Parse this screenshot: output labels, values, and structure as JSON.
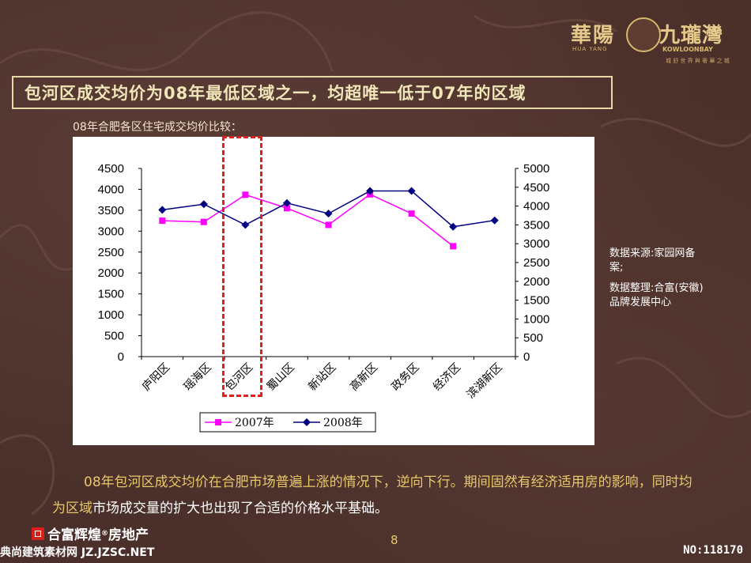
{
  "brand": {
    "name_cn_1": "華陽",
    "name_cn_2": "九瓏灣",
    "name_en_1": "HUA YANG",
    "name_en_2": "KOWLOONBAY",
    "tagline": "城 舒 世 界 與 奢 華 之 城"
  },
  "slide": {
    "title": "包河区成交均价为08年最低区域之一，均超唯一低于07年的区域",
    "subtitle": "08年合肥各区住宅成交均价比较：",
    "source_1": "数据来源:家园网备案;",
    "source_2": "数据整理:合富(安徽)品牌发展中心",
    "body_gold": "08年包河区成交均价在合肥市场普遍上涨的情况下，逆向下行。期间固然有经济适用房的影响，同时均为区域",
    "body_white": "市场成交量的扩大也出现了合适的价格水平基础。",
    "page_number": "8"
  },
  "footer": {
    "company": "合富辉煌",
    "reg": "®",
    "company_suffix": "房地产",
    "watermark_left": "典尚建筑素材网 JZ.JZSC.NET",
    "watermark_right": "NO:118170"
  },
  "chart_data": {
    "type": "line",
    "categories": [
      "庐阳区",
      "瑶海区",
      "包河区",
      "蜀山区",
      "新站区",
      "高新区",
      "政务区",
      "经济区",
      "滨湖新区"
    ],
    "series": [
      {
        "name": "2007年",
        "axis": "left",
        "color": "#ff00ff",
        "marker": "square",
        "values": [
          3250,
          3220,
          3870,
          3550,
          3150,
          3880,
          3420,
          2640,
          null
        ]
      },
      {
        "name": "2008年",
        "axis": "right",
        "color": "#000080",
        "marker": "diamond",
        "values": [
          3900,
          4050,
          3500,
          4080,
          3800,
          4400,
          4400,
          3450,
          3620
        ]
      }
    ],
    "y_left": {
      "min": 0,
      "max": 4500,
      "step": 500
    },
    "y_right": {
      "min": 0,
      "max": 5000,
      "step": 500
    },
    "grid": false,
    "legend_position": "bottom-left",
    "highlight_category": "包河区"
  }
}
